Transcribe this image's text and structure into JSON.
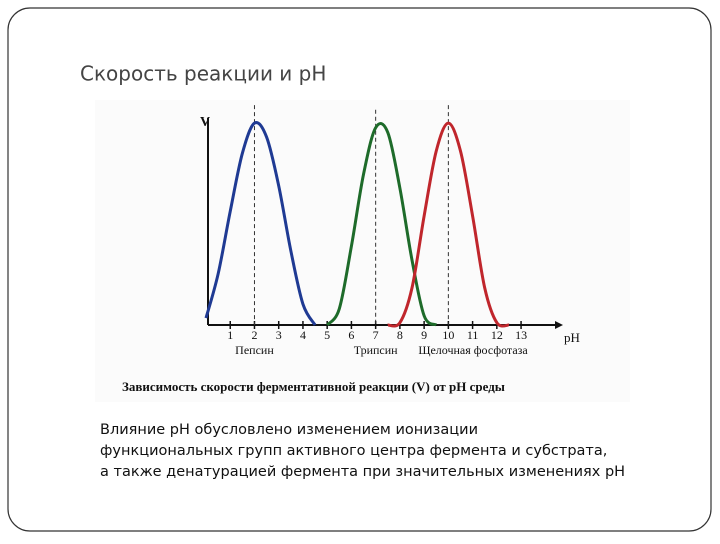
{
  "slide": {
    "title": "Скорость реакции и pH",
    "body_lines": [
      "Влияние pH обусловлено изменением ионизации",
      "функциональных групп активного центра фермента и субстрата,",
      "а также денатурацией фермента при значительных изменениях pH"
    ]
  },
  "chart_data": {
    "type": "line",
    "title": "Зависимость скорости ферментативной реакции (V) от pH среды",
    "x_label": "pH",
    "y_label": "V",
    "x": [
      0,
      0.5,
      1,
      1.5,
      2,
      2.5,
      3,
      3.5,
      4,
      4.5,
      5,
      5.5,
      6,
      6.5,
      7,
      7.5,
      8,
      8.5,
      9,
      9.5,
      10,
      10.5,
      11,
      11.5,
      12,
      12.5,
      13
    ],
    "series": [
      {
        "name": "Пепсин",
        "color": "#1f3a93",
        "values": [
          0.03,
          0.22,
          0.49,
          0.74,
          0.87,
          0.81,
          0.6,
          0.32,
          0.09,
          0,
          null,
          null,
          null,
          null,
          null,
          null,
          null,
          null,
          null,
          null,
          null,
          null,
          null,
          null,
          null,
          null,
          null
        ]
      },
      {
        "name": "Трипсин",
        "color": "#1e6b2a",
        "values": [
          null,
          null,
          null,
          null,
          null,
          null,
          null,
          null,
          null,
          null,
          0,
          0.07,
          0.34,
          0.65,
          0.85,
          0.83,
          0.59,
          0.28,
          0.04,
          0,
          null,
          null,
          null,
          null,
          null,
          null,
          null
        ]
      },
      {
        "name": "Щелочная фосфотаза",
        "color": "#c0262c",
        "values": [
          null,
          null,
          null,
          null,
          null,
          null,
          null,
          null,
          null,
          null,
          null,
          null,
          null,
          null,
          null,
          0,
          0.01,
          0.16,
          0.47,
          0.75,
          0.87,
          0.75,
          0.47,
          0.16,
          0.01,
          0,
          null
        ]
      }
    ],
    "xlim": [
      0,
      14.4
    ],
    "ylim": [
      0,
      1
    ],
    "xticks": [
      1,
      2,
      3,
      4,
      5,
      6,
      7,
      8,
      9,
      10,
      11,
      12,
      13
    ]
  }
}
